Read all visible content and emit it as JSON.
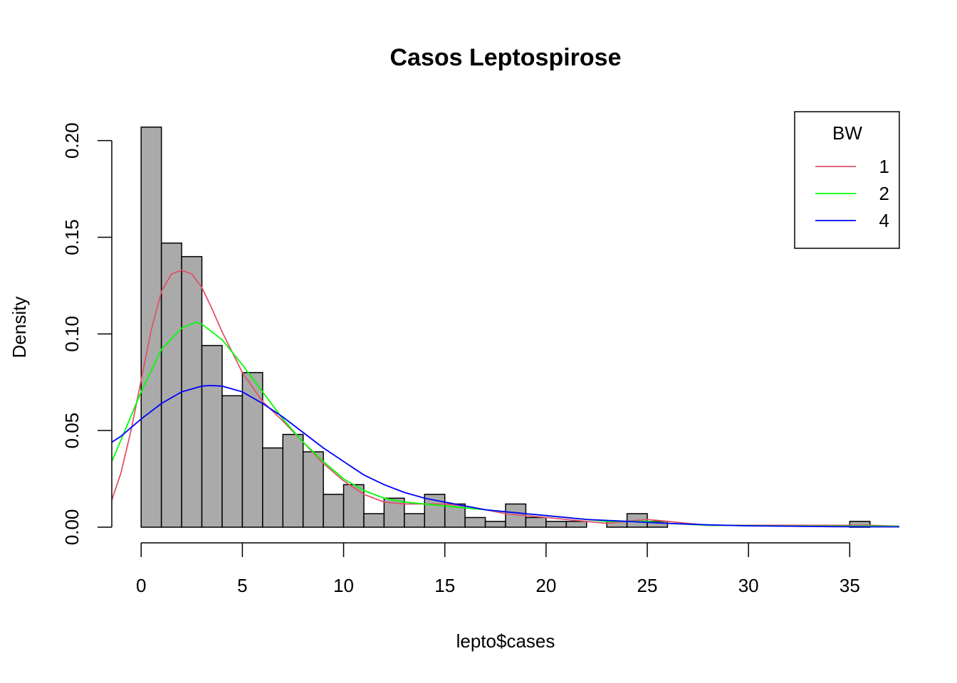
{
  "chart_data": {
    "type": "histogram",
    "title": "Casos Leptospirose",
    "xlabel": "lepto$cases",
    "ylabel": "Density",
    "xlim": [
      -1.45,
      37.45
    ],
    "ylim": [
      0,
      0.2065
    ],
    "x_ticks": [
      0,
      5,
      10,
      15,
      20,
      25,
      30,
      35
    ],
    "x_tick_labels": [
      "0",
      "5",
      "10",
      "15",
      "20",
      "25",
      "30",
      "35"
    ],
    "y_ticks": [
      0,
      0.05,
      0.1,
      0.15,
      0.2
    ],
    "y_tick_labels": [
      "0.00",
      "0.05",
      "0.10",
      "0.15",
      "0.20"
    ],
    "grid": false,
    "bar_color": "#aaaaaa",
    "bins": {
      "breaks": [
        0,
        1,
        2,
        3,
        4,
        5,
        6,
        7,
        8,
        9,
        10,
        11,
        12,
        13,
        14,
        15,
        16,
        17,
        18,
        19,
        20,
        21,
        22,
        23,
        24,
        25,
        26,
        27,
        28,
        29,
        30,
        31,
        32,
        33,
        34,
        35,
        36
      ],
      "density": [
        0.207,
        0.147,
        0.14,
        0.094,
        0.068,
        0.08,
        0.041,
        0.048,
        0.039,
        0.017,
        0.022,
        0.007,
        0.015,
        0.007,
        0.017,
        0.012,
        0.005,
        0.003,
        0.012,
        0.005,
        0.003,
        0.003,
        0,
        0.003,
        0.007,
        0.003,
        0,
        0,
        0,
        0,
        0,
        0,
        0,
        0,
        0,
        0.003
      ]
    },
    "legend": {
      "title": "BW",
      "placement": "top-right",
      "entries": [
        {
          "label": "1",
          "color": "#df536b"
        },
        {
          "label": "2",
          "color": "#00ff00"
        },
        {
          "label": "4",
          "color": "#0000ff"
        }
      ]
    },
    "series": [
      {
        "name": "1",
        "color": "#df536b",
        "x": [
          -1.45,
          -1,
          -0.5,
          0,
          0.5,
          1,
          1.5,
          2,
          2.5,
          3,
          3.5,
          4,
          5,
          6,
          7,
          8,
          9,
          10,
          11,
          12,
          13,
          14,
          15,
          16,
          17,
          18,
          19,
          20,
          21,
          22,
          23,
          24,
          25,
          26,
          27,
          28,
          30,
          32,
          34,
          36,
          37.45
        ],
        "y": [
          0.014,
          0.028,
          0.05,
          0.076,
          0.102,
          0.122,
          0.131,
          0.133,
          0.131,
          0.124,
          0.113,
          0.101,
          0.08,
          0.065,
          0.055,
          0.044,
          0.033,
          0.024,
          0.017,
          0.013,
          0.012,
          0.012,
          0.012,
          0.011,
          0.009,
          0.007,
          0.006,
          0.005,
          0.004,
          0.003,
          0.002,
          0.003,
          0.004,
          0.003,
          0.002,
          0.001,
          0.001,
          0.001,
          0.001,
          0.001,
          0.0005
        ]
      },
      {
        "name": "2",
        "color": "#00ff00",
        "x": [
          -1.45,
          -1,
          0,
          1,
          2,
          2.7,
          3,
          4,
          5,
          6,
          7,
          8,
          9,
          10,
          11,
          12,
          13,
          14,
          15,
          16,
          17,
          18,
          19,
          20,
          21,
          22,
          23,
          24,
          25,
          26,
          28,
          30,
          32,
          34,
          36,
          37.45
        ],
        "y": [
          0.034,
          0.045,
          0.07,
          0.092,
          0.103,
          0.106,
          0.105,
          0.097,
          0.084,
          0.07,
          0.056,
          0.044,
          0.034,
          0.025,
          0.019,
          0.015,
          0.013,
          0.012,
          0.011,
          0.01,
          0.009,
          0.008,
          0.007,
          0.006,
          0.005,
          0.004,
          0.003,
          0.003,
          0.003,
          0.002,
          0.001,
          0.0008,
          0.0006,
          0.0006,
          0.0006,
          0.0004
        ]
      },
      {
        "name": "4",
        "color": "#0000ff",
        "x": [
          -1.45,
          -1,
          0,
          1,
          2,
          3,
          3.4,
          4,
          5,
          6,
          7,
          8,
          9,
          10,
          11,
          12,
          13,
          14,
          15,
          16,
          17,
          18,
          19,
          20,
          22,
          24,
          26,
          28,
          30,
          32,
          34,
          36,
          37.45
        ],
        "y": [
          0.044,
          0.047,
          0.056,
          0.064,
          0.07,
          0.073,
          0.0733,
          0.073,
          0.07,
          0.064,
          0.057,
          0.049,
          0.041,
          0.034,
          0.027,
          0.022,
          0.018,
          0.015,
          0.013,
          0.011,
          0.009,
          0.008,
          0.007,
          0.006,
          0.004,
          0.003,
          0.002,
          0.0012,
          0.0007,
          0.0005,
          0.0003,
          0.0002,
          0.0002
        ]
      }
    ]
  }
}
